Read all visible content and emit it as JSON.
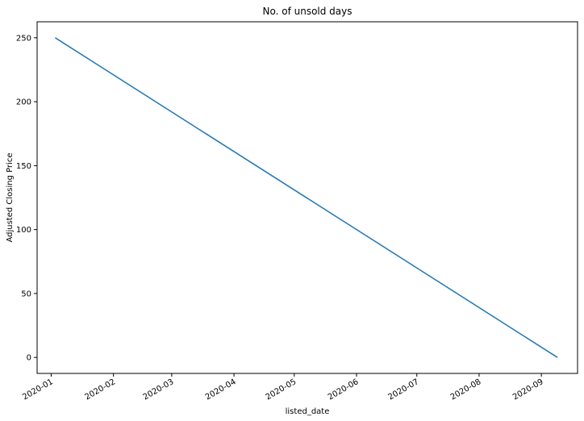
{
  "chart_data": {
    "type": "line",
    "title": "No. of unsold days",
    "xlabel": "listed_date",
    "ylabel": "Adjusted Closing Price",
    "x_tick_labels": [
      "2020-01",
      "2020-02",
      "2020-03",
      "2020-04",
      "2020-05",
      "2020-06",
      "2020-07",
      "2020-08",
      "2020-09"
    ],
    "y_tick_labels": [
      "0",
      "50",
      "100",
      "150",
      "200",
      "250"
    ],
    "ylim": [
      -12.5,
      262.5
    ],
    "xlim": [
      "2019-12-25",
      "2020-09-19"
    ],
    "grid": false,
    "series": [
      {
        "color": "#1f77b4",
        "x": [
          "2020-01-03",
          "2020-09-09"
        ],
        "y": [
          250,
          0
        ]
      }
    ]
  }
}
